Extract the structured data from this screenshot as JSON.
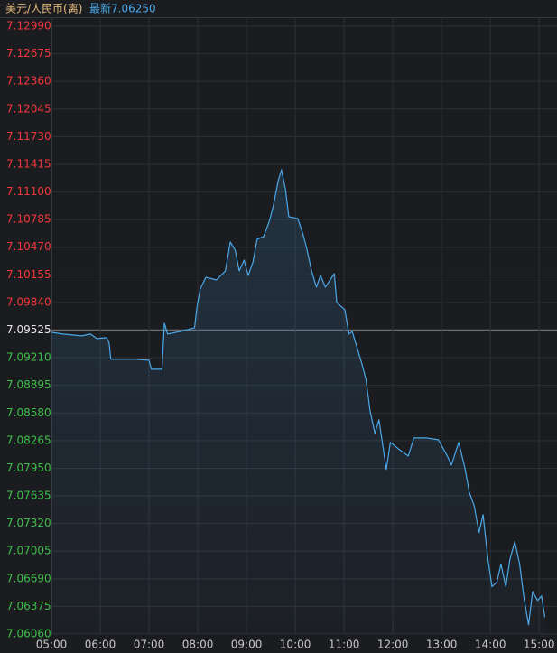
{
  "chart_data": {
    "type": "line",
    "title": "美元/人民币(离)",
    "latest_label": "最新7.06250",
    "color": "#4aa8e8",
    "up_color": "#f0383c",
    "down_color": "#3fbf4a",
    "baseline": 7.09525,
    "grid": true,
    "xlim": [
      300,
      922
    ],
    "xticks": [
      {
        "value": 300,
        "label": "05:00"
      },
      {
        "value": 360,
        "label": "06:00"
      },
      {
        "value": 420,
        "label": "07:00"
      },
      {
        "value": 480,
        "label": "08:00"
      },
      {
        "value": 540,
        "label": "09:00"
      },
      {
        "value": 600,
        "label": "10:00"
      },
      {
        "value": 660,
        "label": "11:00"
      },
      {
        "value": 720,
        "label": "12:00"
      },
      {
        "value": 780,
        "label": "13:00"
      },
      {
        "value": 840,
        "label": "14:00"
      },
      {
        "value": 900,
        "label": "15:00"
      }
    ],
    "ylim": [
      7.0606,
      7.1299
    ],
    "yticks": [
      {
        "value": 7.1299,
        "label": "7.12990"
      },
      7.12675,
      {
        "value": 7.1236,
        "label": "7.12360"
      },
      7.12045,
      {
        "value": 7.1173,
        "label": "7.11730"
      },
      7.11415,
      {
        "value": 7.111,
        "label": "7.11100"
      },
      7.10785,
      {
        "value": 7.1047,
        "label": "7.10470"
      },
      7.10155,
      {
        "value": 7.0984,
        "label": "7.09840"
      },
      7.09525,
      {
        "value": 7.0921,
        "label": "7.09210"
      },
      7.08895,
      {
        "value": 7.0858,
        "label": "7.08580"
      },
      7.08265,
      {
        "value": 7.0795,
        "label": "7.07950"
      },
      7.07635,
      {
        "value": 7.0732,
        "label": "7.07320"
      },
      7.07005,
      {
        "value": 7.0669,
        "label": "7.06690"
      },
      7.06375,
      {
        "value": 7.0606,
        "label": "7.06060"
      }
    ],
    "x": [
      300,
      314,
      337,
      348,
      356,
      368,
      371,
      373,
      403,
      420,
      423,
      436,
      439,
      443,
      459,
      476,
      479,
      483,
      490,
      503,
      514,
      520,
      526,
      531,
      537,
      542,
      548,
      553,
      561,
      568,
      573,
      579,
      583,
      588,
      592,
      603,
      609,
      614,
      620,
      626,
      631,
      637,
      648,
      651,
      661,
      666,
      670,
      681,
      687,
      692,
      698,
      703,
      712,
      717,
      731,
      739,
      746,
      761,
      776,
      787,
      792,
      801,
      809,
      814,
      820,
      826,
      831,
      837,
      842,
      848,
      853,
      859,
      864,
      870,
      876,
      881,
      887,
      892,
      898,
      903,
      907
    ],
    "values": [
      7.095,
      7.0948,
      7.09459,
      7.0948,
      7.09428,
      7.09439,
      7.09377,
      7.09192,
      7.09192,
      7.09181,
      7.09078,
      7.09078,
      7.09603,
      7.0948,
      7.09511,
      7.09552,
      7.09789,
      7.09994,
      7.10128,
      7.10097,
      7.102,
      7.1053,
      7.10437,
      7.102,
      7.10324,
      7.10149,
      7.10303,
      7.10561,
      7.10592,
      7.10767,
      7.10942,
      7.1123,
      7.11353,
      7.11127,
      7.10818,
      7.10797,
      7.10633,
      7.10458,
      7.102,
      7.10015,
      7.10149,
      7.10015,
      7.10169,
      7.0984,
      7.09758,
      7.0948,
      7.09511,
      7.09171,
      7.08965,
      7.08605,
      7.08347,
      7.08502,
      7.07936,
      7.08245,
      7.08142,
      7.0809,
      7.08296,
      7.08296,
      7.08275,
      7.0809,
      7.07987,
      7.08245,
      7.07936,
      7.07678,
      7.07524,
      7.07215,
      7.07421,
      7.06909,
      7.066,
      7.06652,
      7.06858,
      7.066,
      7.06909,
      7.07112,
      7.06858,
      7.06495,
      7.06165,
      7.06546,
      7.06443,
      7.06495,
      7.0625
    ]
  }
}
